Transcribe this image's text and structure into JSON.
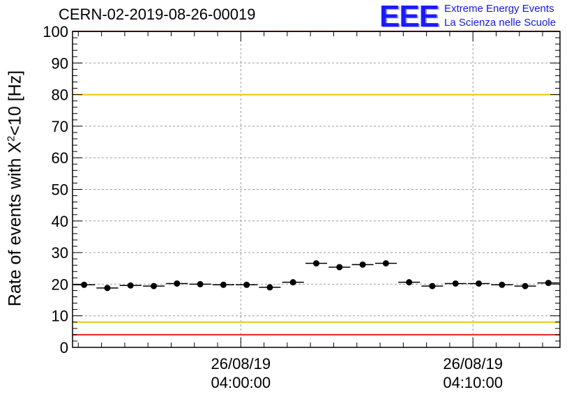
{
  "title": "CERN-02-2019-08-26-00019",
  "logo": {
    "mark": "EEE",
    "line1": "Extreme Energy Events",
    "line2": "La Scienza nelle Scuole"
  },
  "colors": {
    "logo": "#1414ff",
    "red_limit": "#e8211d",
    "yellow_limit": "#f0c800",
    "points": "#000000",
    "grid": "#9a9a9a"
  },
  "chart_data": {
    "type": "scatter",
    "ylabel_prefix": "Rate of events with X",
    "ylabel_sup": "2",
    "ylabel_suffix": "<10 [Hz]",
    "ylim": [
      0,
      100
    ],
    "yticks": [
      0,
      10,
      20,
      30,
      40,
      50,
      60,
      70,
      80,
      90,
      100
    ],
    "xlim": [
      "03:52:45",
      "04:13:45"
    ],
    "xtick_labels": [
      {
        "time": "04:00:00",
        "date": "26/08/19",
        "clock": "04:00:00"
      },
      {
        "time": "04:10:00",
        "date": "26/08/19",
        "clock": "04:10:00"
      }
    ],
    "grid": true,
    "horizontal_lines": [
      {
        "value": 4,
        "color": "red"
      },
      {
        "value": 8,
        "color": "yellow"
      },
      {
        "value": 80,
        "color": "yellow"
      },
      {
        "value": 100,
        "color": "red"
      }
    ],
    "points": [
      {
        "x": "03:53:15",
        "y": 19.8
      },
      {
        "x": "03:54:15",
        "y": 18.8
      },
      {
        "x": "03:55:15",
        "y": 19.6
      },
      {
        "x": "03:56:15",
        "y": 19.4
      },
      {
        "x": "03:57:15",
        "y": 20.2
      },
      {
        "x": "03:58:15",
        "y": 20.0
      },
      {
        "x": "03:59:15",
        "y": 19.8
      },
      {
        "x": "04:00:15",
        "y": 19.8
      },
      {
        "x": "04:01:15",
        "y": 19.0
      },
      {
        "x": "04:02:15",
        "y": 20.6
      },
      {
        "x": "04:03:15",
        "y": 26.6
      },
      {
        "x": "04:04:15",
        "y": 25.4
      },
      {
        "x": "04:05:15",
        "y": 26.2
      },
      {
        "x": "04:06:15",
        "y": 26.6
      },
      {
        "x": "04:07:15",
        "y": 20.6
      },
      {
        "x": "04:08:15",
        "y": 19.4
      },
      {
        "x": "04:09:15",
        "y": 20.2
      },
      {
        "x": "04:10:15",
        "y": 20.2
      },
      {
        "x": "04:11:15",
        "y": 19.8
      },
      {
        "x": "04:12:15",
        "y": 19.4
      },
      {
        "x": "04:13:15",
        "y": 20.4
      }
    ]
  }
}
